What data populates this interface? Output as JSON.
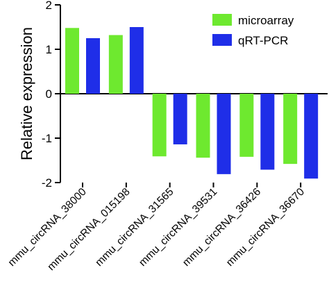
{
  "chart_data": {
    "type": "bar",
    "title": "",
    "xlabel": "",
    "ylabel": "Relative expression",
    "ylim": [
      -2,
      2
    ],
    "yticks": [
      2,
      1,
      0,
      -1,
      -2
    ],
    "grid": false,
    "legend_position": "top-right",
    "categories": [
      "mmu_circRNA_38000",
      "mmu_circRNA_015198",
      "mmu_circRNA_31565",
      "mmu_circRNA_39531",
      "mmu_circRNA_36426",
      "mmu_circRNA_36670"
    ],
    "series": [
      {
        "name": "microarray",
        "color": "#6ee92f",
        "values": [
          1.48,
          1.32,
          -1.41,
          -1.44,
          -1.42,
          -1.58
        ]
      },
      {
        "name": "qRT-PCR",
        "color": "#1f2ee8",
        "values": [
          1.25,
          1.5,
          -1.14,
          -1.81,
          -1.71,
          -1.91
        ]
      }
    ]
  }
}
